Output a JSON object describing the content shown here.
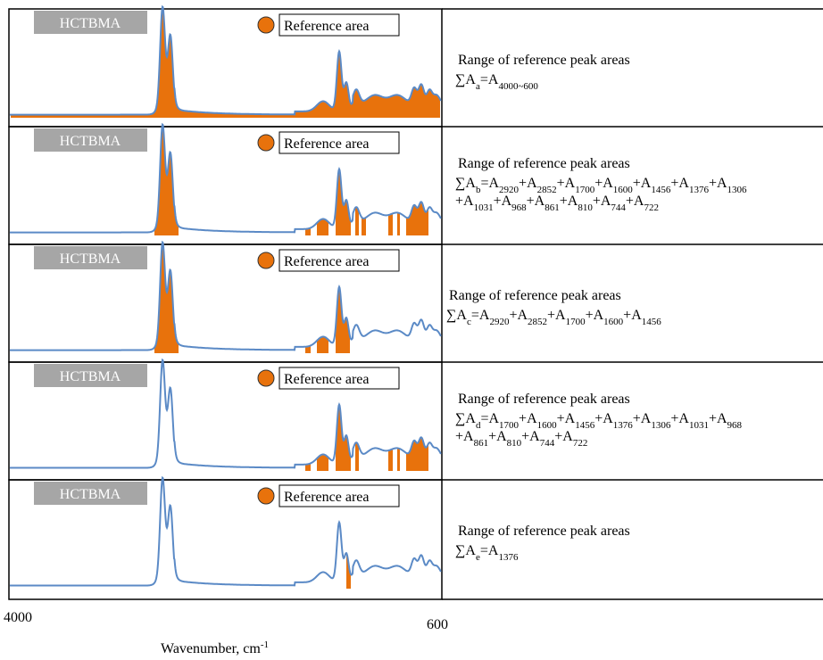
{
  "panels": [
    {
      "label": "HCTBMA",
      "legend": "Reference area",
      "heading": "Range of reference peak areas",
      "lines": [
        [
          {
            "text": "∑A",
            "sub": "a"
          },
          {
            "text": "=A",
            "sub": "4000~600"
          }
        ]
      ]
    },
    {
      "label": "HCTBMA",
      "legend": "Reference area",
      "heading": "Range of reference peak areas",
      "lines": [
        [
          {
            "text": "∑A",
            "sub": "b"
          },
          {
            "text": "=A",
            "sub": "2920"
          },
          {
            "text": "+A",
            "sub": "2852"
          },
          {
            "text": "+A",
            "sub": "1700"
          },
          {
            "text": "+A",
            "sub": "1600"
          },
          {
            "text": "+A",
            "sub": "1456"
          },
          {
            "text": "+A",
            "sub": "1376"
          },
          {
            "text": "+A",
            "sub": "1306"
          }
        ],
        [
          {
            "text": "+A",
            "sub": "1031"
          },
          {
            "text": "+A",
            "sub": "968"
          },
          {
            "text": "+A",
            "sub": "861"
          },
          {
            "text": "+A",
            "sub": "810"
          },
          {
            "text": "+A",
            "sub": "744"
          },
          {
            "text": "+A",
            "sub": "722"
          }
        ]
      ]
    },
    {
      "label": "HCTBMA",
      "legend": "Reference area",
      "heading": "Range of reference peak areas",
      "lines": [
        [
          {
            "text": "∑A",
            "sub": "c"
          },
          {
            "text": "=A",
            "sub": "2920"
          },
          {
            "text": "+A",
            "sub": "2852"
          },
          {
            "text": "+A",
            "sub": "1700"
          },
          {
            "text": "+A",
            "sub": "1600"
          },
          {
            "text": "+A",
            "sub": "1456"
          }
        ]
      ]
    },
    {
      "label": "HCTBMA",
      "legend": "Reference area",
      "heading": "Range of reference peak areas",
      "lines": [
        [
          {
            "text": "∑A",
            "sub": "d"
          },
          {
            "text": "=A",
            "sub": "1700"
          },
          {
            "text": "+A",
            "sub": "1600"
          },
          {
            "text": "+A",
            "sub": "1456"
          },
          {
            "text": "+A",
            "sub": "1376"
          },
          {
            "text": "+A",
            "sub": "1306"
          },
          {
            "text": "+A",
            "sub": "1031"
          },
          {
            "text": "+A",
            "sub": "968"
          }
        ],
        [
          {
            "text": "+A",
            "sub": "861"
          },
          {
            "text": "+A",
            "sub": "810"
          },
          {
            "text": "+A",
            "sub": "744"
          },
          {
            "text": "+A",
            "sub": "722"
          }
        ]
      ]
    },
    {
      "label": "HCTBMA",
      "legend": "Reference area",
      "heading": "Range of reference peak areas",
      "lines": [
        [
          {
            "text": "∑A",
            "sub": "e"
          },
          {
            "text": "=A",
            "sub": "1376"
          }
        ]
      ]
    }
  ],
  "axis": {
    "left_label": "4000",
    "right_label": "600",
    "title": {
      "text": "Wavenumber, cm",
      "sup": "-1"
    }
  }
}
